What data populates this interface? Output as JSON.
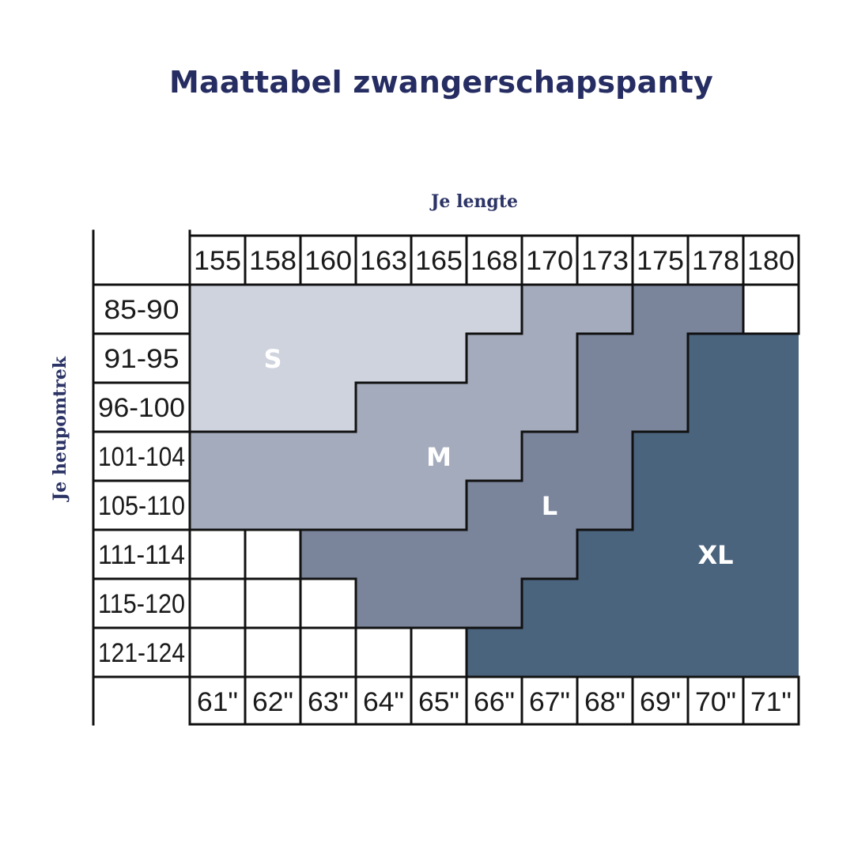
{
  "title": "Maattabel zwangerschapspanty",
  "chart_data": {
    "type": "table",
    "xlabel": "Je lengte",
    "ylabel": "Je heupomtrek",
    "height_cm": [
      "155",
      "158",
      "160",
      "163",
      "165",
      "168",
      "170",
      "173",
      "175",
      "178",
      "180"
    ],
    "height_in": [
      "61\"",
      "62\"",
      "63\"",
      "64\"",
      "65\"",
      "66\"",
      "67\"",
      "68\"",
      "69\"",
      "70\"",
      "71\""
    ],
    "hip_ranges": [
      "85-90",
      "91-95",
      "96-100",
      "101-104",
      "105-110",
      "111-114",
      "115-120",
      "121-124"
    ],
    "sizes": [
      {
        "label": "S",
        "color": "#cfd3de"
      },
      {
        "label": "M",
        "color": "#a4abbc"
      },
      {
        "label": "L",
        "color": "#7a859c"
      },
      {
        "label": "XL",
        "color": "#4b647e"
      }
    ],
    "grid": [
      [
        "S",
        "S",
        "S",
        "S",
        "S",
        "S",
        "M",
        "M",
        "L",
        "L",
        ""
      ],
      [
        "S",
        "S",
        "S",
        "S",
        "S",
        "M",
        "M",
        "L",
        "L",
        "XL",
        "XL"
      ],
      [
        "S",
        "S",
        "S",
        "M",
        "M",
        "M",
        "M",
        "L",
        "L",
        "XL",
        "XL"
      ],
      [
        "M",
        "M",
        "M",
        "M",
        "M",
        "M",
        "L",
        "L",
        "XL",
        "XL",
        "XL"
      ],
      [
        "M",
        "M",
        "M",
        "M",
        "M",
        "L",
        "L",
        "L",
        "XL",
        "XL",
        "XL"
      ],
      [
        "",
        "",
        "L",
        "L",
        "L",
        "L",
        "L",
        "XL",
        "XL",
        "XL",
        "XL"
      ],
      [
        "",
        "",
        "",
        "L",
        "L",
        "L",
        "XL",
        "XL",
        "XL",
        "XL",
        "XL"
      ],
      [
        "",
        "",
        "",
        "",
        "",
        "XL",
        "XL",
        "XL",
        "XL",
        "XL",
        "XL"
      ]
    ]
  }
}
